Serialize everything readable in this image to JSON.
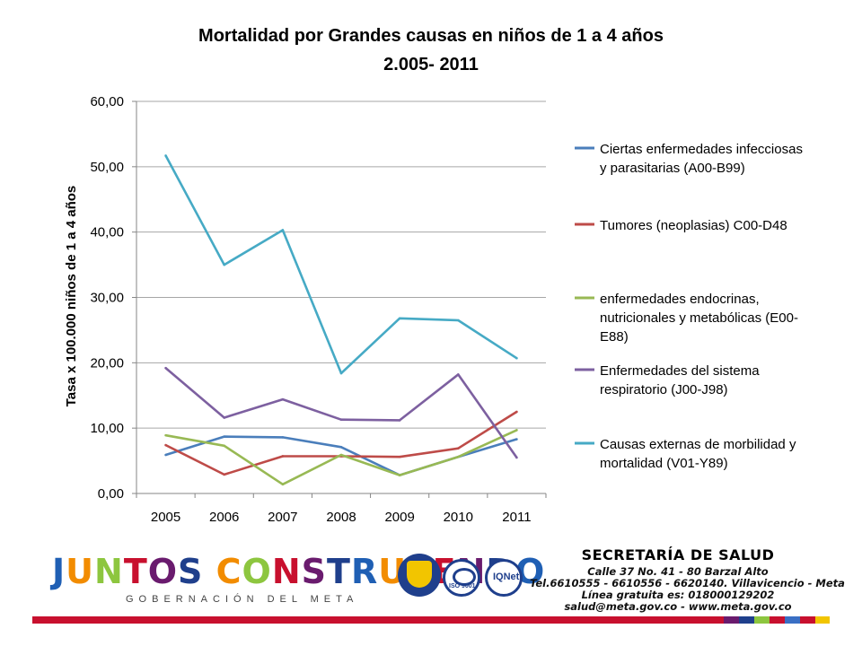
{
  "chart_data": {
    "type": "line",
    "title_line1": "Mortalidad por Grandes causas en niños de 1 a 4 años",
    "title_line2": "2.005- 2011",
    "ylabel": "Tasa x 100.000 niños de 1 a 4 años",
    "xlabel": "",
    "categories": [
      "2005",
      "2006",
      "2007",
      "2008",
      "2009",
      "2010",
      "2011"
    ],
    "yticks": [
      "0,00",
      "10,00",
      "20,00",
      "30,00",
      "40,00",
      "50,00",
      "60,00"
    ],
    "ylim": [
      0,
      60
    ],
    "grid": true,
    "legend_position": "right",
    "series": [
      {
        "name": "Ciertas enfermedades infecciosas y parasitarias (A00-B99)",
        "legend_lines": [
          "Ciertas enfermedades infecciosas",
          "y parasitarias (A00-B99)"
        ],
        "color": "#4a7ebb",
        "values": [
          5.9,
          8.7,
          8.6,
          7.1,
          2.8,
          5.6,
          8.3
        ]
      },
      {
        "name": "Tumores (neoplasias) C00-D48",
        "legend_lines": [
          "Tumores (neoplasias) C00-D48"
        ],
        "color": "#be4b48",
        "values": [
          7.4,
          2.9,
          5.7,
          5.7,
          5.6,
          6.9,
          12.5
        ]
      },
      {
        "name": "enfermedades endocrinas, nutricionales y metabólicas (E00-E88)",
        "legend_lines": [
          "enfermedades endocrinas,",
          "nutricionales y metabólicas (E00-",
          "E88)"
        ],
        "color": "#98b954",
        "values": [
          8.9,
          7.3,
          1.4,
          5.9,
          2.8,
          5.6,
          9.7
        ]
      },
      {
        "name": "Enfermedades del sistema respiratorio (J00-J98)",
        "legend_lines": [
          "Enfermedades del sistema",
          "respiratorio (J00-J98)"
        ],
        "color": "#7d60a0",
        "values": [
          19.2,
          11.6,
          14.4,
          11.3,
          11.2,
          18.2,
          5.5
        ]
      },
      {
        "name": "Causas externas de morbilidad y mortalidad (V01-Y89)",
        "legend_lines": [
          "Causas externas de morbilidad y",
          "mortalidad (V01-Y89)"
        ],
        "color": "#46aac5",
        "values": [
          51.7,
          35.0,
          40.3,
          18.4,
          26.8,
          26.5,
          20.7
        ]
      }
    ]
  },
  "footer": {
    "logo_text": "JUNTOS CONSTRUYENDO",
    "logo_letters": [
      "J",
      "U",
      "N",
      "T",
      "O",
      "S",
      " ",
      "C",
      "O",
      "N",
      "S",
      "T",
      "R",
      "U",
      "Y",
      "E",
      "N",
      "D",
      "O"
    ],
    "logo_subtitle": "GOBERNACIÓN DEL META",
    "badge_iso": "ISO 9001",
    "badge_iqnet": "IQNet",
    "secretaria_title": "SECRETARÍA DE SALUD",
    "address": "Calle 37 No. 41 - 80 Barzal Alto",
    "phones": "Tel.6610555 - 6610556 - 6620140. Villavicencio - Meta",
    "free_line": "Línea gratuita es: 018000129202",
    "contact": "salud@meta.gov.co - www.meta.gov.co",
    "bar_colors": [
      "#c8102e",
      "#6a1b6e",
      "#1f3f8c",
      "#8dc63f",
      "#c8102e",
      "#3a6fc4",
      "#c8102e",
      "#f2c500"
    ]
  }
}
